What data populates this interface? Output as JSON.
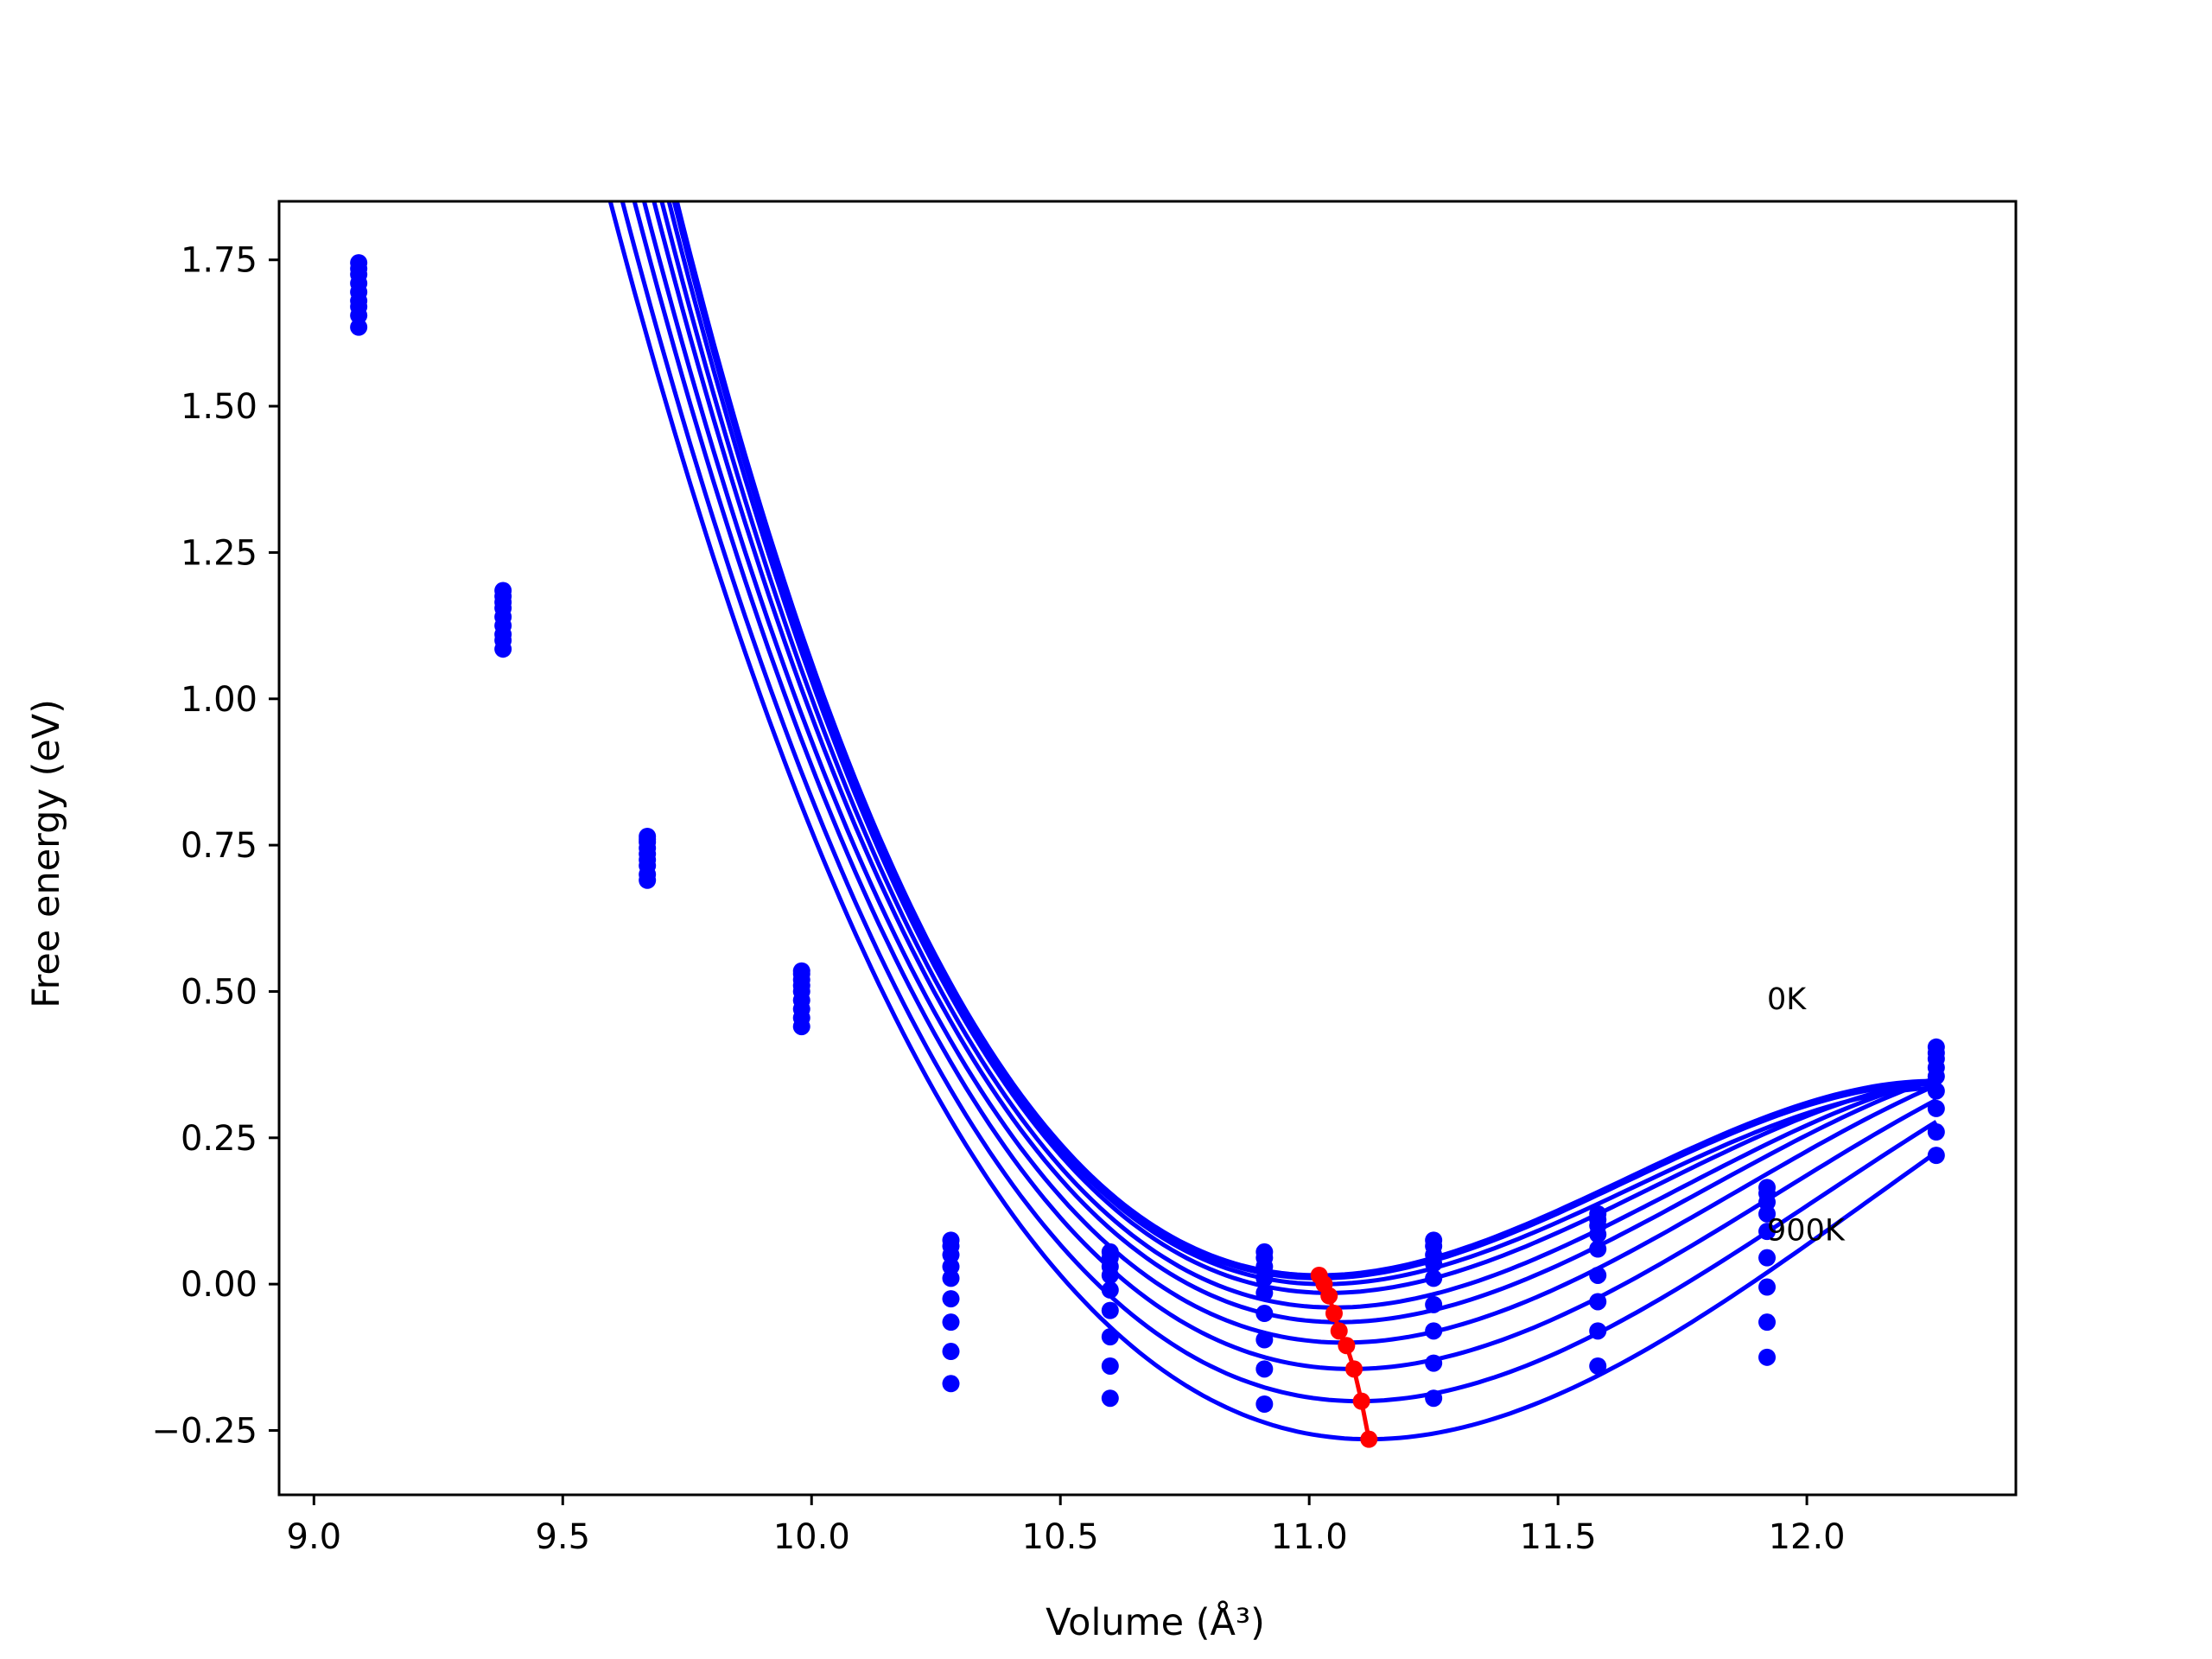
{
  "chart_data": {
    "type": "line",
    "title": "",
    "xlabel": "Volume (Å³)",
    "ylabel": "Free energy (eV)",
    "xlim": [
      8.93,
      12.42
    ],
    "ylim": [
      -0.36,
      1.85
    ],
    "x_ticks": [
      9.0,
      9.5,
      10.0,
      10.5,
      11.0,
      11.5,
      12.0
    ],
    "x_tick_labels": [
      "9.0",
      "9.5",
      "10.0",
      "10.5",
      "11.0",
      "11.5",
      "12.0"
    ],
    "y_ticks": [
      -0.25,
      0.0,
      0.25,
      0.5,
      0.75,
      1.0,
      1.25,
      1.5,
      1.75
    ],
    "y_tick_labels": [
      "−0.25",
      "0.00",
      "0.25",
      "0.50",
      "0.75",
      "1.00",
      "1.25",
      "1.50",
      "1.75"
    ],
    "grid": false,
    "legend": "none",
    "colors": {
      "curves": "#0000ff",
      "minima": "#ff0000",
      "axes": "#000000"
    },
    "volumes": [
      9.09,
      9.38,
      9.67,
      9.98,
      10.28,
      10.6,
      10.91,
      11.25,
      11.58,
      11.92,
      12.26
    ],
    "fit_x_range": [
      9.09,
      12.26
    ],
    "series": [
      {
        "fit": {
          "V0": 11.02,
          "E0": 0.015,
          "a": 0.65,
          "b": 0.35
        },
        "points": [
          1.745,
          1.185,
          0.765,
          0.535,
          0.075,
          0.055,
          0.055,
          0.075,
          0.12,
          0.165,
          0.405
        ]
      },
      {
        "fit": {
          "V0": 11.02,
          "E0": 0.01,
          "a": 0.65,
          "b": 0.35
        },
        "points": [
          1.735,
          1.175,
          0.76,
          0.53,
          0.065,
          0.045,
          0.045,
          0.065,
          0.11,
          0.155,
          0.395
        ]
      },
      {
        "fit": {
          "V0": 11.03,
          "E0": 0.0,
          "a": 0.64,
          "b": 0.34
        },
        "points": [
          1.725,
          1.165,
          0.755,
          0.52,
          0.05,
          0.03,
          0.03,
          0.05,
          0.1,
          0.14,
          0.385
        ]
      },
      {
        "fit": {
          "V0": 11.04,
          "E0": -0.015,
          "a": 0.635,
          "b": 0.32
        },
        "points": [
          1.71,
          1.155,
          0.745,
          0.51,
          0.03,
          0.015,
          0.01,
          0.035,
          0.085,
          0.12,
          0.37
        ]
      },
      {
        "fit": {
          "V0": 11.05,
          "E0": -0.04,
          "a": 0.63,
          "b": 0.3
        },
        "points": [
          1.695,
          1.14,
          0.735,
          0.5,
          0.01,
          -0.01,
          -0.015,
          0.01,
          0.06,
          0.09,
          0.355
        ]
      },
      {
        "fit": {
          "V0": 11.06,
          "E0": -0.065,
          "a": 0.625,
          "b": 0.28
        },
        "points": [
          1.68,
          1.125,
          0.725,
          0.485,
          -0.025,
          -0.045,
          -0.05,
          -0.035,
          0.015,
          0.045,
          0.33
        ]
      },
      {
        "fit": {
          "V0": 11.07,
          "E0": -0.1,
          "a": 0.62,
          "b": 0.26
        },
        "points": [
          1.67,
          1.11,
          0.715,
          0.47,
          -0.065,
          -0.09,
          -0.095,
          -0.08,
          -0.03,
          -0.005,
          0.3
        ]
      },
      {
        "fit": {
          "V0": 11.085,
          "E0": -0.145,
          "a": 0.615,
          "b": 0.24
        },
        "points": [
          1.655,
          1.1,
          0.7,
          0.455,
          -0.115,
          -0.14,
          -0.145,
          -0.135,
          -0.08,
          -0.065,
          0.26
        ]
      },
      {
        "fit": {
          "V0": 11.1,
          "E0": -0.2,
          "a": 0.61,
          "b": 0.22
        },
        "points": [
          1.635,
          1.085,
          0.69,
          0.44,
          -0.17,
          -0.195,
          -0.205,
          -0.195,
          -0.14,
          -0.125,
          0.22
        ]
      },
      {
        "fit": {
          "V0": 11.12,
          "E0": -0.265,
          "a": 0.605,
          "b": 0.2
        },
        "points": []
      }
    ],
    "minima": {
      "x": [
        11.02,
        11.03,
        11.04,
        11.05,
        11.06,
        11.075,
        11.09,
        11.105,
        11.12
      ],
      "y": [
        0.015,
        0.0,
        -0.02,
        -0.05,
        -0.08,
        -0.105,
        -0.145,
        -0.2,
        -0.265
      ]
    },
    "annotations": [
      {
        "text": "0K",
        "x": 11.92,
        "y": 0.47
      },
      {
        "text": "900K",
        "x": 11.92,
        "y": 0.075
      }
    ]
  }
}
